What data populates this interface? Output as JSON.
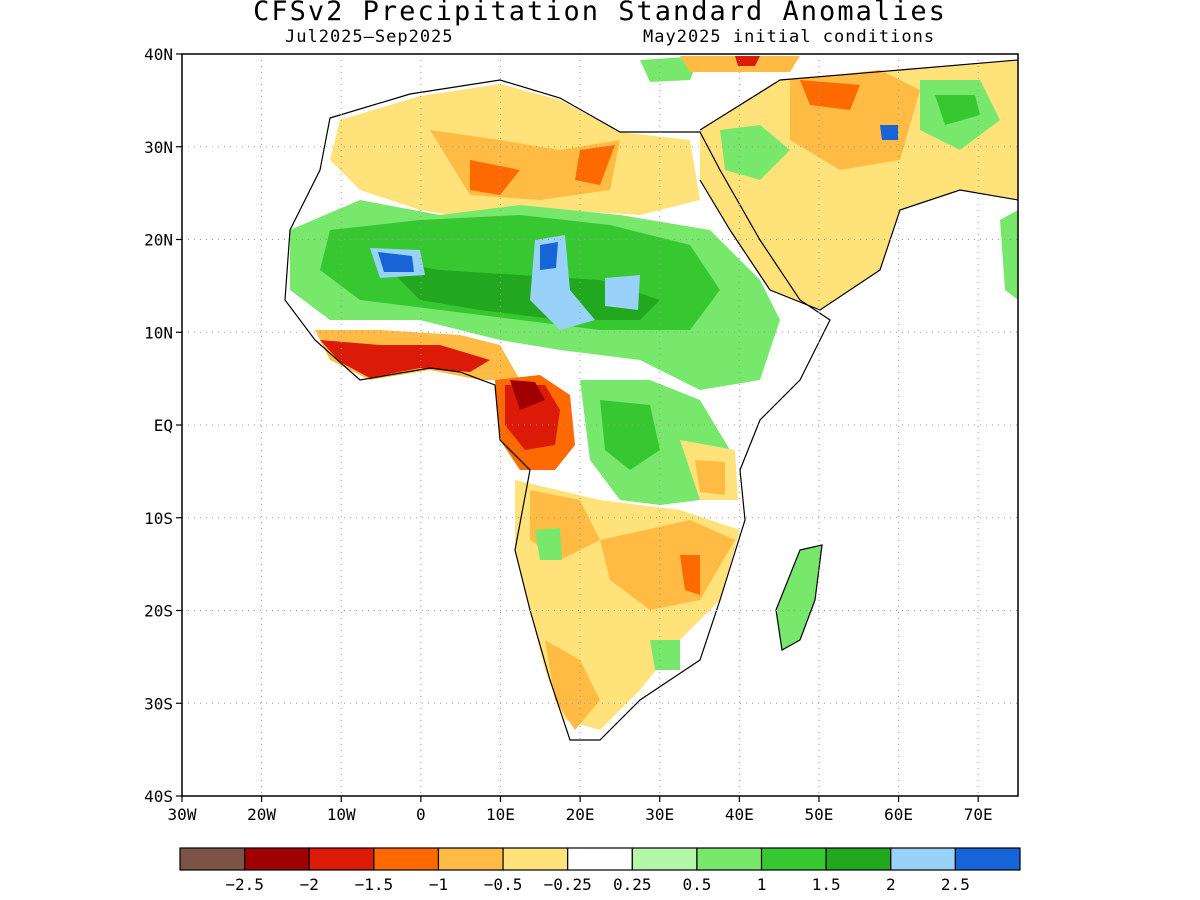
{
  "title": "CFSv2 Precipitation Standard Anomalies",
  "subtitle_left": "Jul2025–Sep2025",
  "subtitle_right": "May2025 initial conditions",
  "map": {
    "lon_range": [
      -30,
      75
    ],
    "lat_range": [
      -40,
      40
    ],
    "lat_ticks": [
      "40N",
      "30N",
      "20N",
      "10N",
      "EQ",
      "10S",
      "20S",
      "30S",
      "40S"
    ],
    "lon_ticks": [
      "30W",
      "20W",
      "10W",
      "0",
      "10E",
      "20E",
      "30E",
      "40E",
      "50E",
      "60E",
      "70E"
    ],
    "gridlines": "dotted"
  },
  "legend": {
    "colors": [
      "#7b5447",
      "#a00000",
      "#dc1a08",
      "#ff6a00",
      "#ffbb44",
      "#ffe27a",
      "#ffffff",
      "#b4f7a8",
      "#78e86c",
      "#37c831",
      "#21a81e",
      "#99d2f8",
      "#1763d8"
    ],
    "labels": [
      "−2.5",
      "−2",
      "−1.5",
      "−1",
      "−0.5",
      "−0.25",
      "0.25",
      "0.5",
      "1",
      "1.5",
      "2",
      "2.5"
    ]
  },
  "colors": {
    "frame": "#000000",
    "grid": "#999999"
  }
}
